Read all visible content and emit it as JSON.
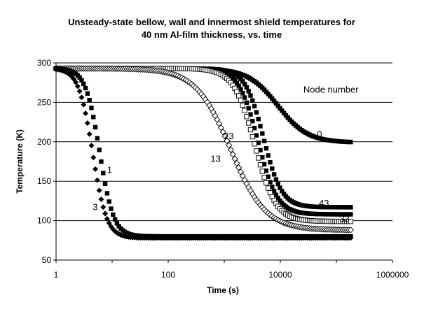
{
  "chart_data": {
    "type": "scatter",
    "title_lines": [
      "Unsteady-state bellow, wall and innermost shield temperatures for",
      "40 nm Al-film thickness, vs. time"
    ],
    "xlabel": "Time (s)",
    "ylabel": "Temperature (K)",
    "x_scale": "log",
    "xlim": [
      1,
      1000000
    ],
    "ylim": [
      50,
      300
    ],
    "x_ticks": [
      1,
      100,
      10000,
      1000000
    ],
    "x_tick_labels": [
      "1",
      "100",
      "10000",
      "1000000"
    ],
    "y_ticks": [
      50,
      100,
      150,
      200,
      250,
      300
    ],
    "y_tick_labels": [
      "50",
      "100",
      "150",
      "200",
      "250",
      "300"
    ],
    "gridlines": "horizontal",
    "legend": "none",
    "annotations": [
      {
        "text": "Node number",
        "x": 80000,
        "y": 266
      },
      {
        "text": "0",
        "x": 50000,
        "y": 209
      },
      {
        "text": "23",
        "x": 1200,
        "y": 207
      },
      {
        "text": "13",
        "x": 700,
        "y": 178
      },
      {
        "text": "1",
        "x": 9,
        "y": 164
      },
      {
        "text": "3",
        "x": 5,
        "y": 117
      },
      {
        "text": "43",
        "x": 60000,
        "y": 122
      },
      {
        "text": "33",
        "x": 140000,
        "y": 102
      }
    ],
    "series": [
      {
        "name": "0",
        "marker": "filled-square",
        "t_start": 1,
        "t_end": 180000,
        "T_start": 293,
        "T_end": 199,
        "t_mid": 9000,
        "width": 0.85
      },
      {
        "name": "43",
        "marker": "filled-square",
        "t_start": 1,
        "t_end": 180000,
        "T_start": 293,
        "T_end": 117,
        "t_mid": 5000,
        "width": 0.52
      },
      {
        "name": "33",
        "marker": "filled-square",
        "t_start": 1,
        "t_end": 180000,
        "T_start": 293,
        "T_end": 108,
        "t_mid": 4000,
        "width": 0.55
      },
      {
        "name": "23",
        "marker": "open-square",
        "t_start": 1,
        "t_end": 180000,
        "T_start": 293,
        "T_end": 99,
        "t_mid": 3500,
        "width": 0.6
      },
      {
        "name": "13",
        "marker": "open-diamond",
        "t_start": 1,
        "t_end": 180000,
        "T_start": 293,
        "T_end": 88,
        "t_mid": 1300,
        "width": 1.0
      },
      {
        "name": "1",
        "marker": "filled-square",
        "t_start": 1,
        "t_end": 180000,
        "T_start": 293,
        "T_end": 80,
        "t_mid": 6,
        "width": 0.4
      },
      {
        "name": "3",
        "marker": "filled-diamond",
        "t_start": 1,
        "t_end": 180000,
        "T_start": 293,
        "T_end": 78,
        "t_mid": 4.5,
        "width": 0.4
      }
    ]
  }
}
